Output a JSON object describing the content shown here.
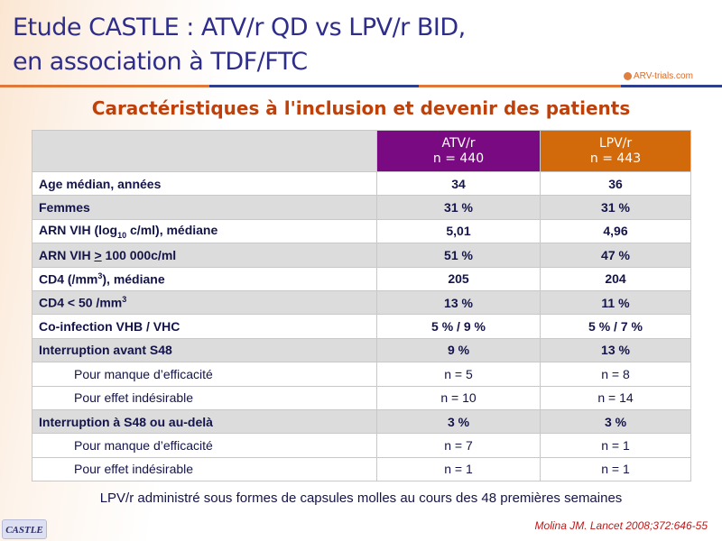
{
  "title": {
    "line1": "Etude CASTLE : ATV/r QD vs LPV/r BID,",
    "line2": "en association à TDF/FTC"
  },
  "logo": "ARV-trials.com",
  "subtitle": "Caractéristiques à l'inclusion et devenir des patients",
  "columns": [
    {
      "name": "ATV/r",
      "n": "n = 440",
      "color": "#7a0a82"
    },
    {
      "name": "LPV/r",
      "n": "n = 443",
      "color": "#d2690a"
    }
  ],
  "rows": [
    {
      "label": "Age médian, années",
      "atv": "34",
      "lpv": "36"
    },
    {
      "label": "Femmes",
      "atv": "31 %",
      "lpv": "31 %"
    },
    {
      "label": "ARN VIH (log",
      "sub": "10",
      "label_end": " c/ml), médiane",
      "atv": "5,01",
      "lpv": "4,96"
    },
    {
      "label": "ARN VIH ",
      "u": ">",
      "label_end": " 100 000c/ml",
      "atv": "51 %",
      "lpv": "47 %"
    },
    {
      "label": "CD4 (/mm",
      "sup": "3",
      "label_end": "), médiane",
      "atv": "205",
      "lpv": "204"
    },
    {
      "label": "CD4 < 50 /mm",
      "sup": "3",
      "atv": "13 %",
      "lpv": "11 %"
    },
    {
      "label": "Co-infection VHB / VHC",
      "atv": "5 % / 9 %",
      "lpv": "5 % / 7 %"
    },
    {
      "label": "Interruption avant S48",
      "atv": "9 %",
      "lpv": "13 %"
    },
    {
      "label": "Pour manque d’efficacité",
      "atv": "n = 5",
      "lpv": "n = 8"
    },
    {
      "label": "Pour effet indésirable",
      "atv": "n = 10",
      "lpv": "n = 14"
    },
    {
      "label": "Interruption à S48 ou au-delà",
      "atv": "3 %",
      "lpv": "3 %"
    },
    {
      "label": "Pour manque d’efficacité",
      "atv": "n = 7",
      "lpv": "n = 1"
    },
    {
      "label": "Pour effet indésirable",
      "atv": "n = 1",
      "lpv": "n = 1"
    }
  ],
  "note": "LPV/r administré sous formes de capsules molles au cours des 48 premières semaines",
  "badge": "CASTLE",
  "reference": "Molina JM. Lancet 2008;372:646-55"
}
